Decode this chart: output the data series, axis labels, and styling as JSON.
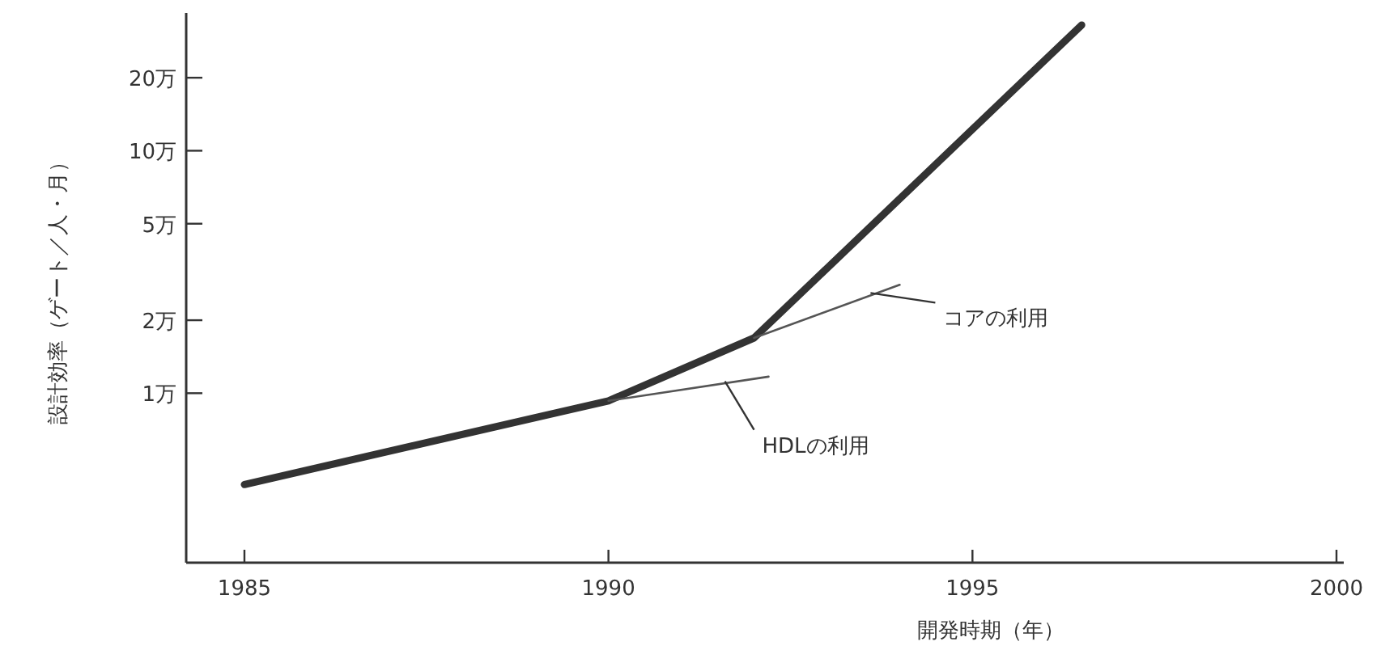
{
  "chart_data": {
    "type": "line",
    "xlabel": "開発時期（年）",
    "ylabel": "設計効率（ゲート／人・月）",
    "log": "y",
    "grid": false,
    "line_style": "solid",
    "xlim": [
      1984.2,
      2000.1
    ],
    "xticks": [
      1985,
      1990,
      1995,
      2000
    ],
    "ylim": [
      0.2,
      37
    ],
    "yticks": [
      {
        "value": 1,
        "label": "1万"
      },
      {
        "value": 2,
        "label": "2万"
      },
      {
        "value": 5,
        "label": "5万"
      },
      {
        "value": 10,
        "label": "10万"
      },
      {
        "value": 20,
        "label": "20万"
      }
    ],
    "series": [
      {
        "color": "#333333",
        "x": [
          1985,
          1990,
          1992,
          1996.5
        ],
        "values": [
          0.42,
          0.93,
          1.69,
          33
        ]
      },
      {
        "color": "#555555",
        "x": [
          1990,
          1992.2
        ],
        "values": [
          0.93,
          1.17
        ]
      },
      {
        "color": "#555555",
        "x": [
          1992,
          1994
        ],
        "values": [
          1.69,
          2.8
        ]
      }
    ],
    "annotations": [
      {
        "text": "HDLの利用",
        "x": 1991.6,
        "y": 1.12
      },
      {
        "text": "コアの利用",
        "x": 1993.6,
        "y": 2.59
      }
    ]
  }
}
